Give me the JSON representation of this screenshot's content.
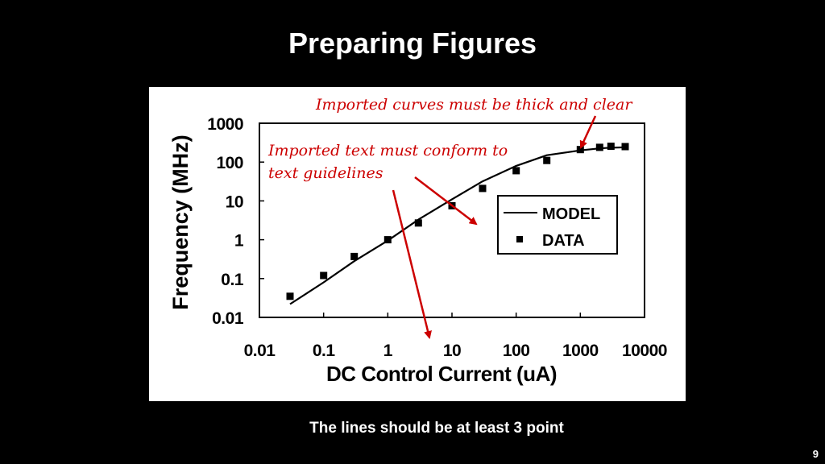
{
  "slide": {
    "title": "Preparing Figures",
    "caption": "The lines should be at least 3 point",
    "page_number": "9"
  },
  "annotations": {
    "curves_note": "Imported curves must be thick and clear",
    "text_note_line1": "Imported text must conform to",
    "text_note_line2": "text guidelines",
    "color": "#cc0000"
  },
  "chart_data": {
    "type": "line",
    "xlabel": "DC Control Current (uA)",
    "ylabel": "Frequency (MHz)",
    "x_scale": "log",
    "y_scale": "log",
    "xlim": [
      0.01,
      10000
    ],
    "ylim": [
      0.01,
      1000
    ],
    "x_ticks": [
      "0.01",
      "0.1",
      "1",
      "10",
      "100",
      "1000",
      "10000"
    ],
    "y_ticks": [
      "0.01",
      "0.1",
      "1",
      "10",
      "100",
      "1000"
    ],
    "grid": false,
    "legend_position": "right",
    "series": [
      {
        "name": "MODEL",
        "style": "line",
        "color": "#000000",
        "x": [
          0.03,
          0.1,
          0.3,
          1,
          3,
          10,
          30,
          100,
          300,
          1000,
          2000,
          3000,
          5000
        ],
        "y": [
          0.022,
          0.08,
          0.28,
          0.95,
          3.3,
          11,
          32,
          80,
          150,
          200,
          225,
          235,
          240
        ]
      },
      {
        "name": "DATA",
        "style": "marker",
        "color": "#000000",
        "x": [
          0.03,
          0.1,
          0.3,
          1,
          3,
          10,
          30,
          100,
          300,
          1000,
          2000,
          3000,
          5000
        ],
        "y": [
          0.035,
          0.12,
          0.37,
          1.0,
          2.7,
          7.5,
          21,
          60,
          110,
          210,
          240,
          255,
          250
        ]
      }
    ]
  }
}
